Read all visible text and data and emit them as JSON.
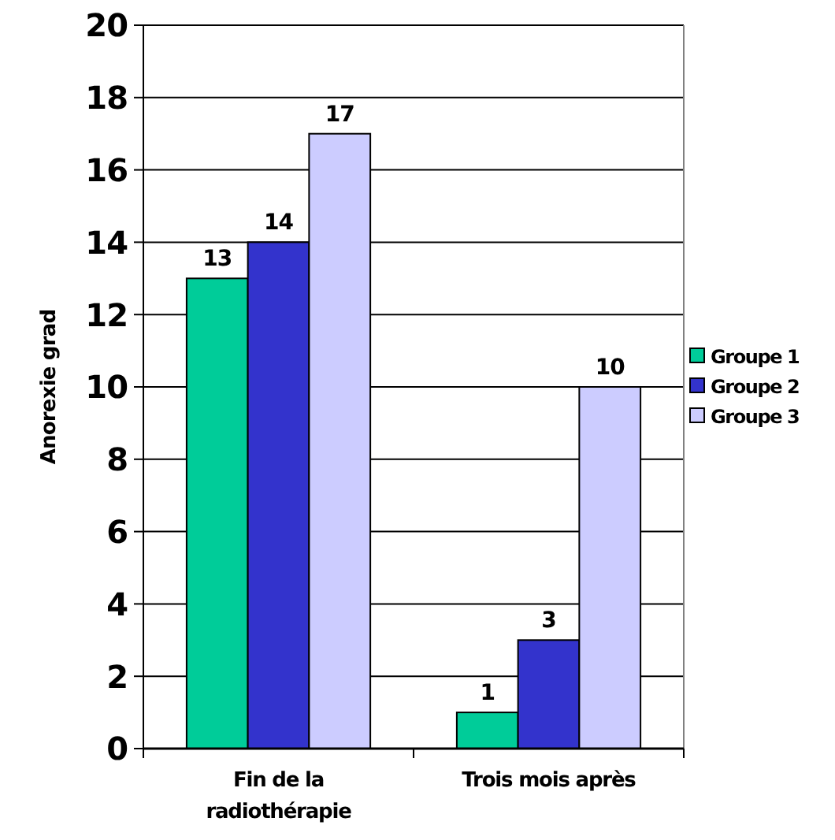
{
  "chart_data": {
    "type": "bar",
    "ylabel": "Anorexie grad",
    "categories": [
      "Fin de la radiothérapie",
      "Trois mois après"
    ],
    "series": [
      {
        "name": "Groupe 1",
        "color": "#00cc99",
        "values": [
          13,
          1
        ]
      },
      {
        "name": "Groupe 2",
        "color": "#3333cc",
        "values": [
          14,
          3
        ]
      },
      {
        "name": "Groupe 3",
        "color": "#ccccff",
        "values": [
          17,
          10
        ]
      }
    ],
    "ylim": [
      0,
      20
    ],
    "yticks": [
      0,
      2,
      4,
      6,
      8,
      10,
      12,
      14,
      16,
      18,
      20
    ],
    "grid": "y",
    "legend": "right",
    "data_labels": true
  }
}
